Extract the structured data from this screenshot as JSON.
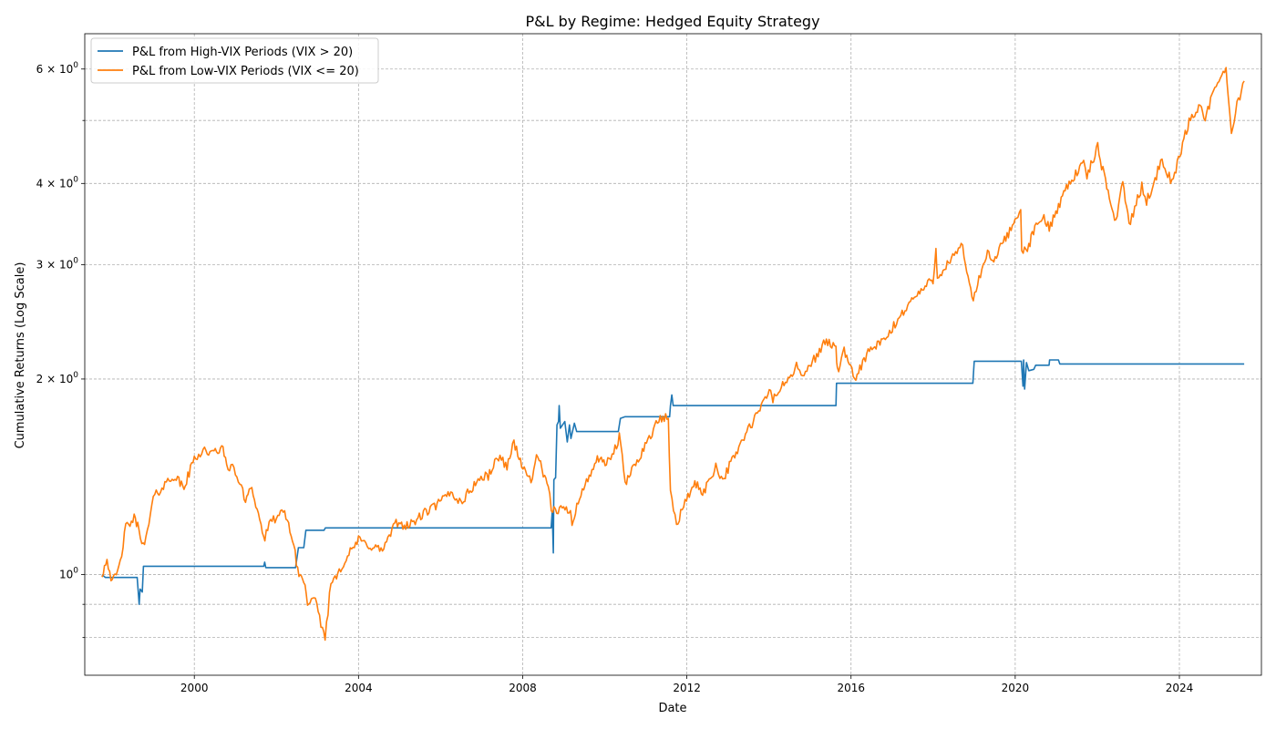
{
  "chart_data": {
    "type": "line",
    "title": "P&L by Regime: Hedged Equity Strategy",
    "xlabel": "Date",
    "ylabel": "Cumulative Returns (Log Scale)",
    "yscale": "log",
    "grid": true,
    "legend_position": "top-left",
    "xlim": [
      "1997-05-01",
      "2025-12-31"
    ],
    "ylim": [
      0.7,
      6.8
    ],
    "x_ticks": [
      {
        "date": "2000-01-01",
        "label": "2000"
      },
      {
        "date": "2004-01-01",
        "label": "2004"
      },
      {
        "date": "2008-01-01",
        "label": "2008"
      },
      {
        "date": "2012-01-01",
        "label": "2012"
      },
      {
        "date": "2016-01-01",
        "label": "2016"
      },
      {
        "date": "2020-01-01",
        "label": "2020"
      },
      {
        "date": "2024-01-01",
        "label": "2024"
      }
    ],
    "y_major_ticks": [
      {
        "value": 1,
        "label": "10^0"
      },
      {
        "value": 2,
        "label": "2x10^0"
      },
      {
        "value": 3,
        "label": "3x10^0"
      },
      {
        "value": 4,
        "label": "4x10^0"
      },
      {
        "value": 6,
        "label": "6x10^0"
      }
    ],
    "y_minor_ticks": [
      0.8,
      0.9,
      5
    ],
    "series": [
      {
        "name": "P&L from High-VIX Periods (VIX > 20)",
        "color": "#1f77b4",
        "points": [
          [
            "1997-10-01",
            1.0
          ],
          [
            "1997-11-01",
            0.99
          ],
          [
            "1998-08-10",
            0.99
          ],
          [
            "1998-08-28",
            0.9
          ],
          [
            "1998-09-05",
            0.95
          ],
          [
            "1998-09-25",
            0.94
          ],
          [
            "1998-10-05",
            1.03
          ],
          [
            "2001-09-10",
            1.03
          ],
          [
            "2001-09-18",
            1.045
          ],
          [
            "2001-09-28",
            1.025
          ],
          [
            "2002-06-20",
            1.025
          ],
          [
            "2002-07-15",
            1.1
          ],
          [
            "2002-09-01",
            1.1
          ],
          [
            "2002-09-20",
            1.17
          ],
          [
            "2003-03-01",
            1.17
          ],
          [
            "2003-03-12",
            1.18
          ],
          [
            "2008-09-10",
            1.18
          ],
          [
            "2008-09-20",
            1.25
          ],
          [
            "2008-09-30",
            1.08
          ],
          [
            "2008-10-05",
            1.4
          ],
          [
            "2008-10-20",
            1.41
          ],
          [
            "2008-11-01",
            1.7
          ],
          [
            "2008-11-15",
            1.72
          ],
          [
            "2008-11-21",
            1.82
          ],
          [
            "2008-12-01",
            1.68
          ],
          [
            "2009-01-10",
            1.72
          ],
          [
            "2009-02-01",
            1.6
          ],
          [
            "2009-02-20",
            1.7
          ],
          [
            "2009-03-05",
            1.62
          ],
          [
            "2009-04-05",
            1.71
          ],
          [
            "2009-04-25",
            1.66
          ],
          [
            "2010-05-01",
            1.66
          ],
          [
            "2010-05-20",
            1.74
          ],
          [
            "2010-07-01",
            1.75
          ],
          [
            "2011-08-01",
            1.75
          ],
          [
            "2011-08-08",
            1.82
          ],
          [
            "2011-08-20",
            1.89
          ],
          [
            "2011-09-01",
            1.82
          ],
          [
            "2015-08-20",
            1.82
          ],
          [
            "2015-08-25",
            1.97
          ],
          [
            "2018-12-20",
            1.97
          ],
          [
            "2019-01-01",
            2.13
          ],
          [
            "2020-02-25",
            2.13
          ],
          [
            "2020-03-10",
            1.95
          ],
          [
            "2020-03-16",
            2.14
          ],
          [
            "2020-03-25",
            1.93
          ],
          [
            "2020-04-10",
            2.12
          ],
          [
            "2020-05-01",
            2.06
          ],
          [
            "2020-06-15",
            2.07
          ],
          [
            "2020-07-01",
            2.1
          ],
          [
            "2020-10-28",
            2.1
          ],
          [
            "2020-11-02",
            2.14
          ],
          [
            "2021-01-20",
            2.14
          ],
          [
            "2021-02-01",
            2.11
          ],
          [
            "2025-07-31",
            2.11
          ]
        ]
      },
      {
        "name": "P&L from Low-VIX Periods (VIX <= 20)",
        "color": "#ff7f0e",
        "points": [
          [
            "1997-10-01",
            1.0
          ],
          [
            "1997-11-15",
            1.06
          ],
          [
            "1998-01-01",
            0.97
          ],
          [
            "1998-03-01",
            1.02
          ],
          [
            "1998-05-01",
            1.18
          ],
          [
            "1998-07-15",
            1.22
          ],
          [
            "1998-08-15",
            1.19
          ],
          [
            "1998-10-15",
            1.1
          ],
          [
            "1999-01-01",
            1.31
          ],
          [
            "1999-04-01",
            1.37
          ],
          [
            "1999-07-01",
            1.42
          ],
          [
            "1999-10-01",
            1.36
          ],
          [
            "2000-01-01",
            1.51
          ],
          [
            "2000-04-01",
            1.56
          ],
          [
            "2000-06-01",
            1.53
          ],
          [
            "2000-09-01",
            1.57
          ],
          [
            "2000-10-15",
            1.48
          ],
          [
            "2001-01-01",
            1.44
          ],
          [
            "2001-04-01",
            1.3
          ],
          [
            "2001-05-15",
            1.38
          ],
          [
            "2001-07-01",
            1.28
          ],
          [
            "2001-09-20",
            1.13
          ],
          [
            "2001-10-15",
            1.18
          ],
          [
            "2002-01-01",
            1.23
          ],
          [
            "2002-03-15",
            1.24
          ],
          [
            "2002-05-01",
            1.18
          ],
          [
            "2002-07-20",
            1.0
          ],
          [
            "2002-09-01",
            0.98
          ],
          [
            "2002-10-15",
            0.89
          ],
          [
            "2002-12-01",
            0.92
          ],
          [
            "2003-03-10",
            0.8
          ],
          [
            "2003-05-01",
            0.97
          ],
          [
            "2003-09-01",
            1.05
          ],
          [
            "2004-01-01",
            1.13
          ],
          [
            "2004-04-01",
            1.11
          ],
          [
            "2004-08-01",
            1.09
          ],
          [
            "2004-12-01",
            1.2
          ],
          [
            "2005-04-01",
            1.19
          ],
          [
            "2005-08-01",
            1.24
          ],
          [
            "2005-12-01",
            1.28
          ],
          [
            "2006-04-01",
            1.34
          ],
          [
            "2006-07-01",
            1.29
          ],
          [
            "2006-12-01",
            1.4
          ],
          [
            "2007-03-01",
            1.42
          ],
          [
            "2007-06-01",
            1.52
          ],
          [
            "2007-08-15",
            1.47
          ],
          [
            "2007-10-15",
            1.6
          ],
          [
            "2008-01-15",
            1.44
          ],
          [
            "2008-03-15",
            1.4
          ],
          [
            "2008-05-15",
            1.53
          ],
          [
            "2008-07-15",
            1.4
          ],
          [
            "2008-08-15",
            1.36
          ],
          [
            "2008-09-12",
            1.26
          ],
          [
            "2009-03-01",
            1.26
          ],
          [
            "2009-03-15",
            1.2
          ],
          [
            "2009-04-15",
            1.26
          ],
          [
            "2009-06-15",
            1.34
          ],
          [
            "2009-10-15",
            1.5
          ],
          [
            "2010-01-15",
            1.48
          ],
          [
            "2010-04-15",
            1.57
          ],
          [
            "2010-05-10",
            1.64
          ],
          [
            "2010-07-01",
            1.38
          ],
          [
            "2010-12-01",
            1.55
          ],
          [
            "2011-04-15",
            1.72
          ],
          [
            "2011-07-20",
            1.75
          ],
          [
            "2011-08-08",
            1.33
          ],
          [
            "2011-10-01",
            1.2
          ],
          [
            "2012-03-01",
            1.38
          ],
          [
            "2012-06-01",
            1.34
          ],
          [
            "2012-09-15",
            1.47
          ],
          [
            "2012-11-15",
            1.4
          ],
          [
            "2013-05-01",
            1.6
          ],
          [
            "2013-10-01",
            1.78
          ],
          [
            "2014-01-15",
            1.93
          ],
          [
            "2014-02-05",
            1.86
          ],
          [
            "2014-09-15",
            2.1
          ],
          [
            "2014-10-15",
            2.0
          ],
          [
            "2015-05-15",
            2.28
          ],
          [
            "2015-08-20",
            2.25
          ],
          [
            "2015-09-01",
            2.05
          ],
          [
            "2015-11-01",
            2.2
          ],
          [
            "2016-02-01",
            2.0
          ],
          [
            "2016-06-01",
            2.2
          ],
          [
            "2016-11-01",
            2.3
          ],
          [
            "2017-06-01",
            2.62
          ],
          [
            "2017-12-31",
            2.85
          ],
          [
            "2018-01-26",
            3.15
          ],
          [
            "2018-02-08",
            2.88
          ],
          [
            "2018-09-20",
            3.2
          ],
          [
            "2018-10-15",
            3.0
          ],
          [
            "2018-12-24",
            2.65
          ],
          [
            "2019-04-30",
            3.15
          ],
          [
            "2019-06-01",
            3.0
          ],
          [
            "2019-12-31",
            3.5
          ],
          [
            "2020-02-19",
            3.7
          ],
          [
            "2020-02-28",
            3.1
          ],
          [
            "2020-05-01",
            3.2
          ],
          [
            "2020-06-01",
            3.35
          ],
          [
            "2020-09-01",
            3.55
          ],
          [
            "2020-10-30",
            3.42
          ],
          [
            "2021-04-01",
            3.95
          ],
          [
            "2021-09-01",
            4.3
          ],
          [
            "2021-10-01",
            4.1
          ],
          [
            "2022-01-04",
            4.55
          ],
          [
            "2022-03-15",
            4.0
          ],
          [
            "2022-06-15",
            3.5
          ],
          [
            "2022-08-15",
            4.05
          ],
          [
            "2022-10-10",
            3.45
          ],
          [
            "2023-02-01",
            3.95
          ],
          [
            "2023-03-15",
            3.75
          ],
          [
            "2023-07-31",
            4.35
          ],
          [
            "2023-10-27",
            4.0
          ],
          [
            "2024-03-28",
            5.0
          ],
          [
            "2024-07-15",
            5.3
          ],
          [
            "2024-08-05",
            5.0
          ],
          [
            "2024-12-06",
            5.7
          ],
          [
            "2025-02-19",
            6.05
          ],
          [
            "2025-03-10",
            5.5
          ],
          [
            "2025-04-08",
            4.7
          ],
          [
            "2025-05-15",
            5.2
          ],
          [
            "2025-07-31",
            5.75
          ]
        ]
      }
    ]
  }
}
